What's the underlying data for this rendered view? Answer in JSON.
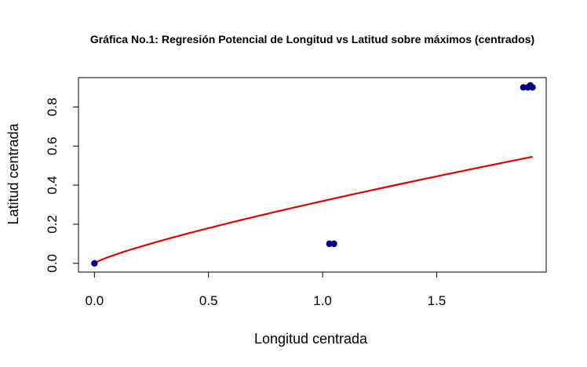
{
  "chart_data": {
    "type": "scatter",
    "title": "Gráfica No.1: Regresión Potencial de Longitud vs Latitud sobre máximos (centrados)",
    "xlabel": "Longitud centrada",
    "ylabel": "Latitud centrada",
    "xlim": [
      -0.07,
      1.98
    ],
    "ylim": [
      -0.045,
      0.95
    ],
    "x_ticks": [
      {
        "value": 0.0,
        "label": "0.0"
      },
      {
        "value": 0.5,
        "label": "0.5"
      },
      {
        "value": 1.0,
        "label": "1.0"
      },
      {
        "value": 1.5,
        "label": "1.5"
      }
    ],
    "y_ticks": [
      {
        "value": 0.0,
        "label": "0.0"
      },
      {
        "value": 0.2,
        "label": "0.2"
      },
      {
        "value": 0.4,
        "label": "0.4"
      },
      {
        "value": 0.6,
        "label": "0.6"
      },
      {
        "value": 0.8,
        "label": "0.8"
      }
    ],
    "points": {
      "color": "#000080",
      "x": [
        0.0,
        1.03,
        1.05,
        1.88,
        1.9,
        1.91,
        1.92
      ],
      "y": [
        0.0,
        0.1,
        0.1,
        0.9,
        0.9,
        0.91,
        0.9
      ]
    },
    "fit_line": {
      "color": "#dd0000",
      "model": "power",
      "a": 0.3185,
      "b": 0.8238,
      "x_start": 0.0,
      "x_end": 1.92
    }
  }
}
